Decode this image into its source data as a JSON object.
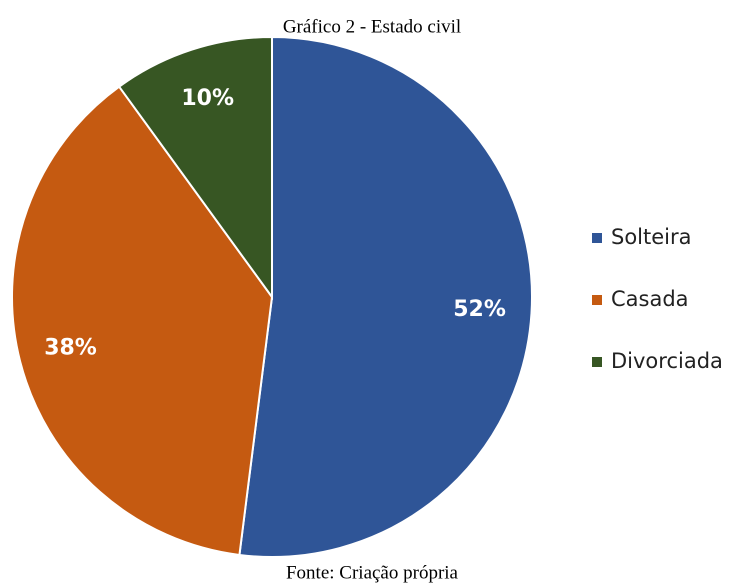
{
  "chart_data": {
    "type": "pie",
    "title": "Gráfico 2 - Estado civil",
    "footer": "Fonte: Criação própria",
    "categories": [
      "Solteira",
      "Casada",
      "Divorciada"
    ],
    "values": [
      52,
      38,
      10
    ],
    "value_labels": [
      "52%",
      "38%",
      "10%"
    ],
    "colors": [
      "#2f5597",
      "#c55a11",
      "#375623"
    ],
    "legend": "right"
  }
}
